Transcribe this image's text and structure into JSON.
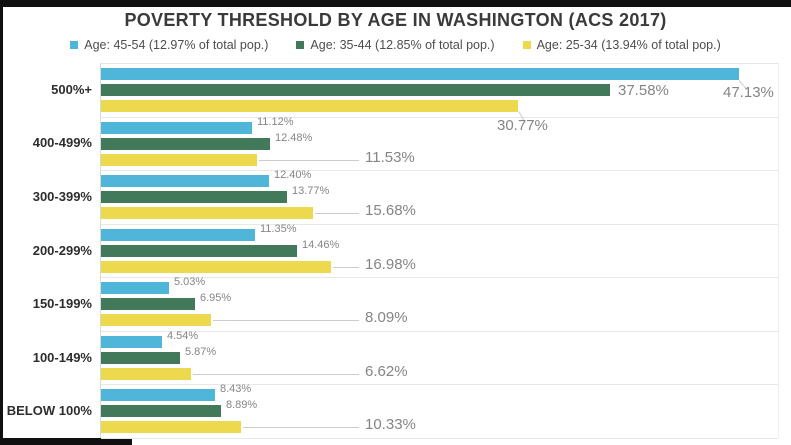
{
  "chart_data": {
    "type": "bar",
    "orientation": "horizontal",
    "title": "POVERTY THRESHOLD BY AGE IN WASHINGTON (ACS 2017)",
    "categories": [
      "500%+",
      "400-499%",
      "300-399%",
      "200-299%",
      "150-199%",
      "100-149%",
      "BELOW 100%"
    ],
    "series": [
      {
        "name": "Age: 45-54 (12.97% of total pop.)",
        "color": "#4fb6d9",
        "values": [
          47.13,
          11.12,
          12.4,
          11.35,
          5.03,
          4.54,
          8.43
        ]
      },
      {
        "name": "Age: 35-44 (12.85% of total pop.)",
        "color": "#41795a",
        "values": [
          37.58,
          12.48,
          13.77,
          14.46,
          6.95,
          5.87,
          8.89
        ]
      },
      {
        "name": "Age: 25-34 (13.94% of total pop.)",
        "color": "#edd94e",
        "values": [
          30.77,
          11.53,
          15.68,
          16.98,
          8.09,
          6.62,
          10.33
        ]
      }
    ],
    "value_suffix": "%",
    "value_decimals": 2,
    "xlim": [
      0,
      50
    ],
    "legend_position": "top",
    "grid": "horizontal-group-separators",
    "colors": {
      "frame": "#101010",
      "grid_line": "#e8e8e8",
      "leader_line": "#cccccc",
      "value_label": "#858585",
      "category_label": "#2d2d2d",
      "title": "#3a3a3a",
      "background": "#ffffff"
    }
  }
}
